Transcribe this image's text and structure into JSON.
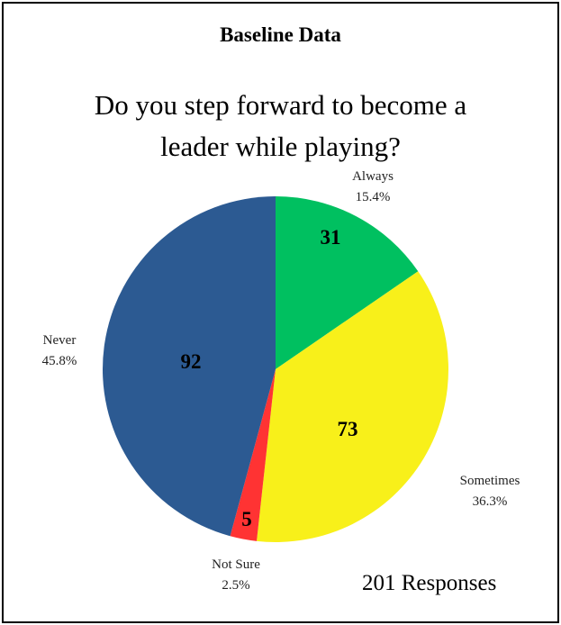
{
  "header": {
    "text": "Baseline Data"
  },
  "chart_data": {
    "type": "pie",
    "title": "Do you step forward to become a leader while playing?",
    "title_lines": [
      "Do you step forward to become a",
      "leader while playing?"
    ],
    "slices": [
      {
        "label": "Always",
        "value": 31,
        "percent": "15.4%",
        "color": "#00c060"
      },
      {
        "label": "Sometimes",
        "value": 73,
        "percent": "36.3%",
        "color": "#f8f01a"
      },
      {
        "label": "Not Sure",
        "value": 5,
        "percent": "2.5%",
        "color": "#ff3333"
      },
      {
        "label": "Never",
        "value": 92,
        "percent": "45.8%",
        "color": "#2c5a92"
      }
    ],
    "start": "top",
    "direction": "clockwise",
    "footnote": "201 Responses"
  }
}
